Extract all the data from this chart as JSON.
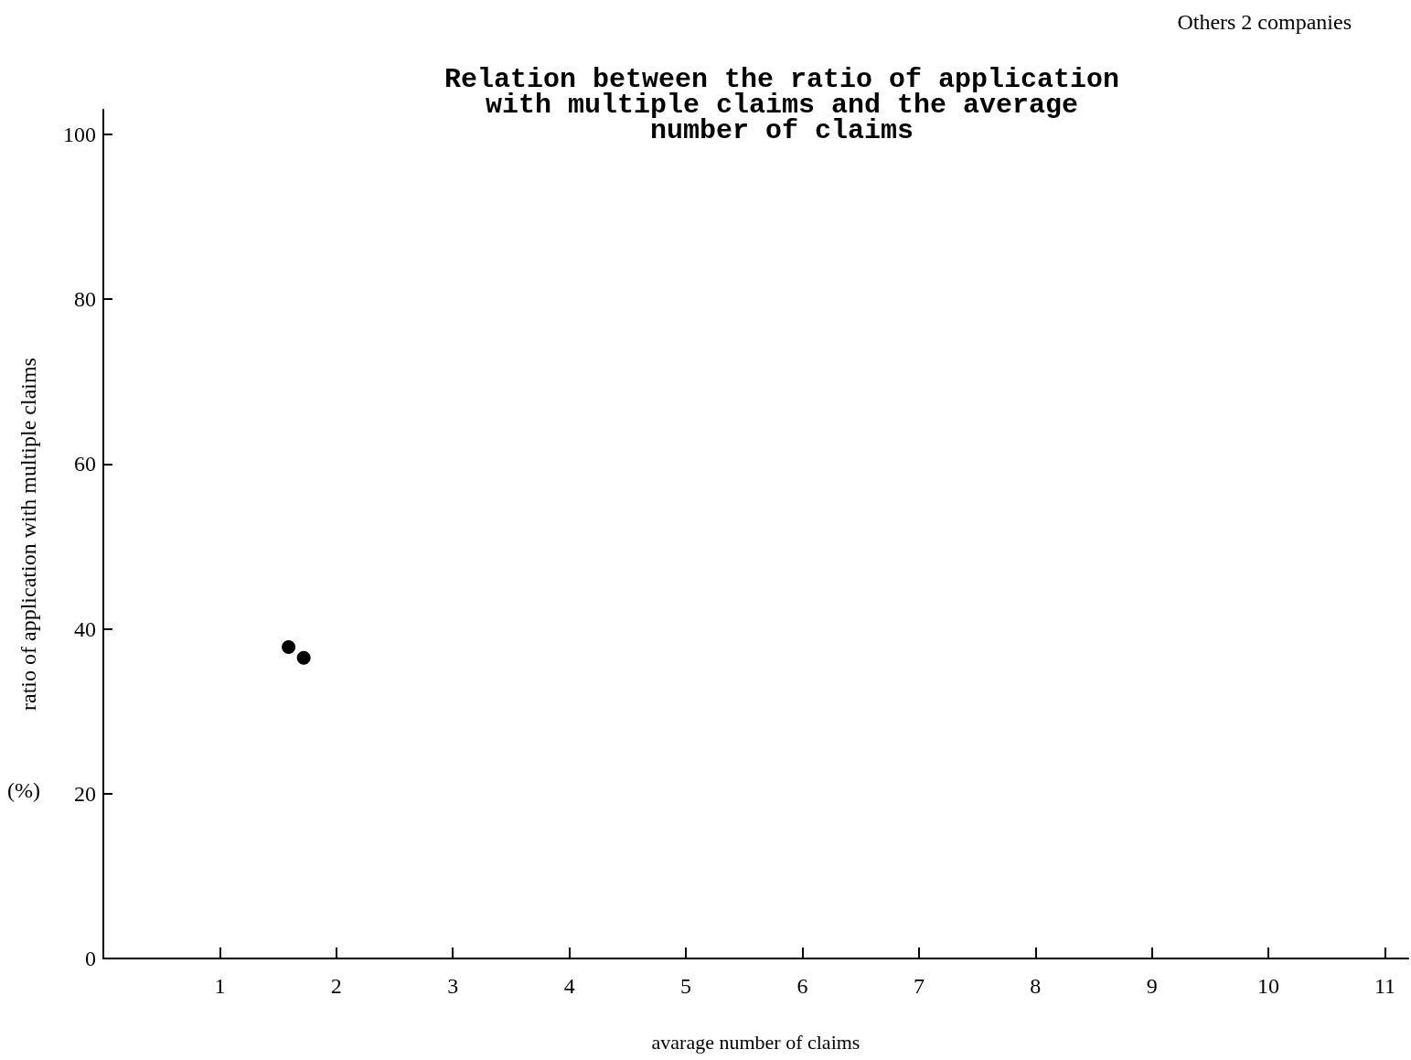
{
  "chart_data": {
    "type": "scatter",
    "title": "Relation between the ratio of application\nwith multiple claims and the average\nnumber of claims",
    "xlabel": "avarage number of claims",
    "ylabel": "ratio of application with multiple claims",
    "annotations": [
      "(%)",
      "Others 2 companies"
    ],
    "x": [
      1.59,
      1.72
    ],
    "series": [
      {
        "color": "#000000",
        "values": [
          37.8,
          36.5
        ]
      }
    ],
    "xlim": [
      0,
      11.2
    ],
    "xticks": [
      1,
      2,
      3,
      4,
      5,
      6,
      7,
      8,
      9,
      10,
      11
    ],
    "ylim": [
      0,
      103
    ],
    "yticks": [
      0,
      20,
      40,
      60,
      80,
      100
    ],
    "marker": "circle",
    "grid": false
  }
}
